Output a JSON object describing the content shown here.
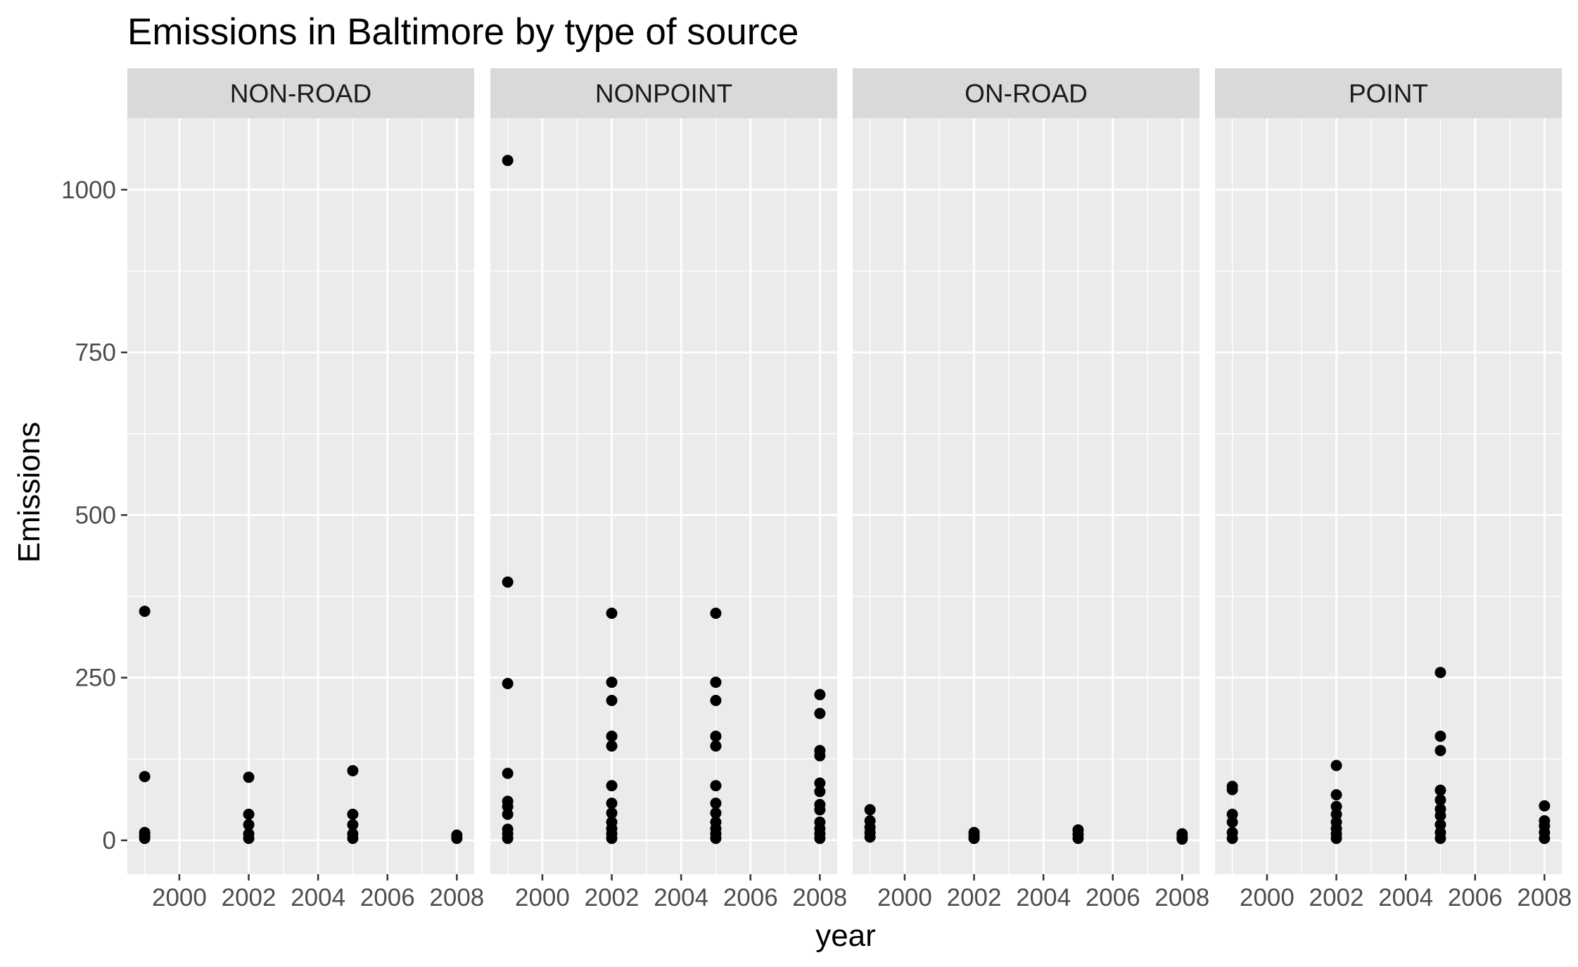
{
  "chart_data": {
    "type": "scatter",
    "title": "Emissions in Baltimore by type of source",
    "xlabel": "year",
    "ylabel": "Emissions",
    "xlim": [
      1998.5,
      2008.5
    ],
    "ylim": [
      -52,
      1110
    ],
    "x_ticks": [
      2000,
      2002,
      2004,
      2006,
      2008
    ],
    "x_tick_labels": [
      "2000",
      "2002",
      "2004",
      "2006",
      "2008"
    ],
    "y_ticks": [
      0,
      250,
      500,
      750,
      1000
    ],
    "y_tick_labels": [
      "0",
      "250",
      "500",
      "750",
      "1000"
    ],
    "grid": true,
    "colors": {
      "panel_bg": "#ebebeb",
      "strip_bg": "#d9d9d9",
      "grid": "#ffffff",
      "point": "#000000"
    },
    "facets": [
      {
        "label": "NON-ROAD",
        "points": [
          {
            "x": 1999,
            "y": 352
          },
          {
            "x": 1999,
            "y": 98
          },
          {
            "x": 1999,
            "y": 12
          },
          {
            "x": 1999,
            "y": 7
          },
          {
            "x": 1999,
            "y": 3
          },
          {
            "x": 2002,
            "y": 97
          },
          {
            "x": 2002,
            "y": 40
          },
          {
            "x": 2002,
            "y": 24
          },
          {
            "x": 2002,
            "y": 10
          },
          {
            "x": 2002,
            "y": 3
          },
          {
            "x": 2005,
            "y": 107
          },
          {
            "x": 2005,
            "y": 40
          },
          {
            "x": 2005,
            "y": 24
          },
          {
            "x": 2005,
            "y": 10
          },
          {
            "x": 2005,
            "y": 3
          },
          {
            "x": 2008,
            "y": 8
          },
          {
            "x": 2008,
            "y": 3
          }
        ]
      },
      {
        "label": "NONPOINT",
        "points": [
          {
            "x": 1999,
            "y": 1045
          },
          {
            "x": 1999,
            "y": 397
          },
          {
            "x": 1999,
            "y": 241
          },
          {
            "x": 1999,
            "y": 103
          },
          {
            "x": 1999,
            "y": 60
          },
          {
            "x": 1999,
            "y": 52
          },
          {
            "x": 1999,
            "y": 40
          },
          {
            "x": 1999,
            "y": 17
          },
          {
            "x": 1999,
            "y": 10
          },
          {
            "x": 1999,
            "y": 3
          },
          {
            "x": 2002,
            "y": 349
          },
          {
            "x": 2002,
            "y": 243
          },
          {
            "x": 2002,
            "y": 215
          },
          {
            "x": 2002,
            "y": 160
          },
          {
            "x": 2002,
            "y": 145
          },
          {
            "x": 2002,
            "y": 84
          },
          {
            "x": 2002,
            "y": 57
          },
          {
            "x": 2002,
            "y": 42
          },
          {
            "x": 2002,
            "y": 28
          },
          {
            "x": 2002,
            "y": 18
          },
          {
            "x": 2002,
            "y": 10
          },
          {
            "x": 2002,
            "y": 3
          },
          {
            "x": 2005,
            "y": 349
          },
          {
            "x": 2005,
            "y": 243
          },
          {
            "x": 2005,
            "y": 215
          },
          {
            "x": 2005,
            "y": 160
          },
          {
            "x": 2005,
            "y": 145
          },
          {
            "x": 2005,
            "y": 84
          },
          {
            "x": 2005,
            "y": 57
          },
          {
            "x": 2005,
            "y": 42
          },
          {
            "x": 2005,
            "y": 28
          },
          {
            "x": 2005,
            "y": 18
          },
          {
            "x": 2005,
            "y": 10
          },
          {
            "x": 2005,
            "y": 3
          },
          {
            "x": 2008,
            "y": 224
          },
          {
            "x": 2008,
            "y": 195
          },
          {
            "x": 2008,
            "y": 138
          },
          {
            "x": 2008,
            "y": 130
          },
          {
            "x": 2008,
            "y": 88
          },
          {
            "x": 2008,
            "y": 75
          },
          {
            "x": 2008,
            "y": 55
          },
          {
            "x": 2008,
            "y": 47
          },
          {
            "x": 2008,
            "y": 28
          },
          {
            "x": 2008,
            "y": 18
          },
          {
            "x": 2008,
            "y": 10
          },
          {
            "x": 2008,
            "y": 3
          }
        ]
      },
      {
        "label": "ON-ROAD",
        "points": [
          {
            "x": 1999,
            "y": 47
          },
          {
            "x": 1999,
            "y": 30
          },
          {
            "x": 1999,
            "y": 20
          },
          {
            "x": 1999,
            "y": 12
          },
          {
            "x": 1999,
            "y": 5
          },
          {
            "x": 2002,
            "y": 12
          },
          {
            "x": 2002,
            "y": 7
          },
          {
            "x": 2002,
            "y": 3
          },
          {
            "x": 2005,
            "y": 16
          },
          {
            "x": 2005,
            "y": 9
          },
          {
            "x": 2005,
            "y": 3
          },
          {
            "x": 2008,
            "y": 10
          },
          {
            "x": 2008,
            "y": 5
          },
          {
            "x": 2008,
            "y": 2
          }
        ]
      },
      {
        "label": "POINT",
        "points": [
          {
            "x": 1999,
            "y": 83
          },
          {
            "x": 1999,
            "y": 78
          },
          {
            "x": 1999,
            "y": 40
          },
          {
            "x": 1999,
            "y": 28
          },
          {
            "x": 1999,
            "y": 12
          },
          {
            "x": 1999,
            "y": 3
          },
          {
            "x": 2002,
            "y": 115
          },
          {
            "x": 2002,
            "y": 70
          },
          {
            "x": 2002,
            "y": 52
          },
          {
            "x": 2002,
            "y": 40
          },
          {
            "x": 2002,
            "y": 28
          },
          {
            "x": 2002,
            "y": 18
          },
          {
            "x": 2002,
            "y": 10
          },
          {
            "x": 2002,
            "y": 3
          },
          {
            "x": 2005,
            "y": 258
          },
          {
            "x": 2005,
            "y": 160
          },
          {
            "x": 2005,
            "y": 138
          },
          {
            "x": 2005,
            "y": 77
          },
          {
            "x": 2005,
            "y": 62
          },
          {
            "x": 2005,
            "y": 48
          },
          {
            "x": 2005,
            "y": 38
          },
          {
            "x": 2005,
            "y": 24
          },
          {
            "x": 2005,
            "y": 12
          },
          {
            "x": 2005,
            "y": 3
          },
          {
            "x": 2008,
            "y": 53
          },
          {
            "x": 2008,
            "y": 30
          },
          {
            "x": 2008,
            "y": 22
          },
          {
            "x": 2008,
            "y": 12
          },
          {
            "x": 2008,
            "y": 3
          }
        ]
      }
    ]
  }
}
